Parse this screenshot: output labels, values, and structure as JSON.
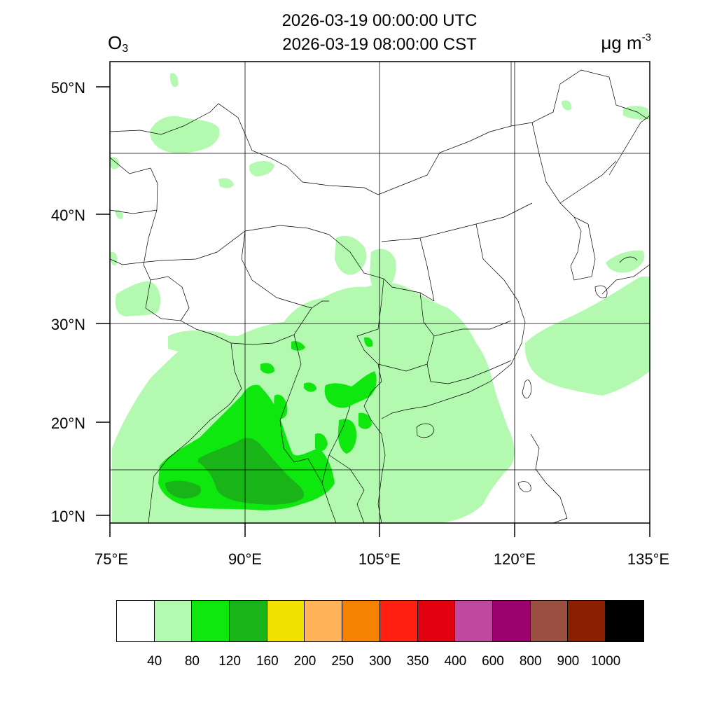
{
  "title": {
    "line1": "2026-03-19 00:00:00 UTC",
    "line2": "2026-03-19 08:00:00 CST"
  },
  "species": {
    "base": "O",
    "subscript": "3"
  },
  "units": {
    "base": "μg m",
    "superscript": "-3"
  },
  "lat_labels": [
    "50°N",
    "40°N",
    "30°N",
    "20°N",
    "10°N"
  ],
  "lon_labels": [
    "75°E",
    "90°E",
    "105°E",
    "120°E",
    "135°E"
  ],
  "colorbar": {
    "colors": [
      "#ffffff",
      "#b3fab0",
      "#0fe80f",
      "#18b418",
      "#f2e000",
      "#ffb45a",
      "#f58200",
      "#ff2010",
      "#e00010",
      "#bf4a9d",
      "#9c006c",
      "#9a5040",
      "#8a2000",
      "#000000"
    ],
    "labels": [
      "40",
      "80",
      "120",
      "160",
      "200",
      "250",
      "300",
      "350",
      "400",
      "600",
      "800",
      "900",
      "1000"
    ]
  }
}
